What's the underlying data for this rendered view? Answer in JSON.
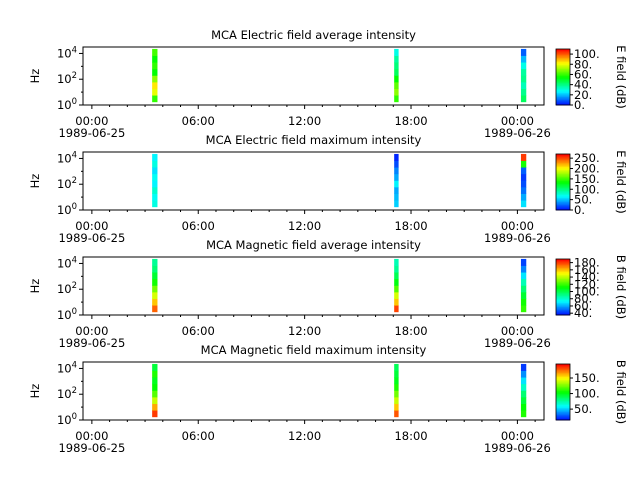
{
  "chart_data": [
    {
      "type": "heatmap",
      "title": "MCA  Electric field average intensity",
      "ylabel": "Hz",
      "colorbar_label": "E field (dB)",
      "colorbar_ticks": [
        "0.",
        "20.",
        "40.",
        "60.",
        "80.",
        "100."
      ],
      "colorbar_range": [
        0,
        110
      ],
      "y_scale": "log",
      "y_tick_labels": [
        "10^0",
        "10^2",
        "10^4"
      ],
      "ylim_log10": [
        0,
        4.5
      ],
      "x_tick_labels": [
        "00:00",
        "06:00",
        "12:00",
        "18:00",
        "00:00"
      ],
      "x_start_date": "1989-06-25",
      "x_end_date": "1989-06-26",
      "xlim_hours": [
        -0.5,
        25.5
      ],
      "bursts": [
        {
          "t_start": 3.4,
          "t_end": 3.7,
          "f_log10": [
            0.25,
            4.35
          ],
          "values_low_to_high": [
            60,
            80,
            85,
            70,
            55,
            60,
            55,
            62
          ]
        },
        {
          "t_start": 17.05,
          "t_end": 17.3,
          "f_log10": [
            0.25,
            4.35
          ],
          "values_low_to_high": [
            60,
            70,
            65,
            55,
            45,
            42,
            38,
            30
          ]
        },
        {
          "t_start": 24.2,
          "t_end": 24.5,
          "f_log10": [
            0.25,
            4.35
          ],
          "values_low_to_high": [
            45,
            40,
            35,
            40,
            38,
            30,
            20,
            10
          ]
        }
      ]
    },
    {
      "type": "heatmap",
      "title": "MCA  Electric field maximum intensity",
      "ylabel": "Hz",
      "colorbar_label": "E field (dB)",
      "colorbar_ticks": [
        "0.",
        "50.",
        "100.",
        "150.",
        "200.",
        "250."
      ],
      "colorbar_range": [
        0,
        270
      ],
      "y_scale": "log",
      "y_tick_labels": [
        "10^0",
        "10^2",
        "10^4"
      ],
      "ylim_log10": [
        0,
        4.5
      ],
      "x_tick_labels": [
        "00:00",
        "06:00",
        "12:00",
        "18:00",
        "00:00"
      ],
      "x_start_date": "1989-06-25",
      "x_end_date": "1989-06-26",
      "xlim_hours": [
        -0.5,
        25.5
      ],
      "bursts": [
        {
          "t_start": 3.4,
          "t_end": 3.7,
          "f_log10": [
            0.25,
            4.35
          ],
          "values_low_to_high": [
            75,
            70,
            80,
            65,
            70,
            60,
            75,
            65
          ]
        },
        {
          "t_start": 17.05,
          "t_end": 17.3,
          "f_log10": [
            0.25,
            4.35
          ],
          "values_low_to_high": [
            55,
            50,
            45,
            65,
            45,
            35,
            20,
            10
          ]
        },
        {
          "t_start": 24.2,
          "t_end": 24.5,
          "f_log10": [
            0.25,
            4.35
          ],
          "values_low_to_high": [
            60,
            45,
            30,
            20,
            15,
            25,
            140,
            255
          ]
        }
      ]
    },
    {
      "type": "heatmap",
      "title": "MCA  Magnetic field average intensity",
      "ylabel": "Hz",
      "colorbar_label": "B field (dB)",
      "colorbar_ticks": [
        "40.",
        "60.",
        "80.",
        "100.",
        "120.",
        "140.",
        "160.",
        "180."
      ],
      "colorbar_range": [
        35,
        190
      ],
      "y_scale": "log",
      "y_tick_labels": [
        "10^0",
        "10^2",
        "10^4"
      ],
      "ylim_log10": [
        0,
        4.5
      ],
      "x_tick_labels": [
        "00:00",
        "06:00",
        "12:00",
        "18:00",
        "00:00"
      ],
      "x_start_date": "1989-06-25",
      "x_end_date": "1989-06-26",
      "xlim_hours": [
        -0.5,
        25.5
      ],
      "bursts": [
        {
          "t_start": 3.4,
          "t_end": 3.7,
          "f_log10": [
            0.25,
            4.35
          ],
          "values_low_to_high": [
            175,
            160,
            145,
            130,
            115,
            105,
            95,
            90
          ]
        },
        {
          "t_start": 17.05,
          "t_end": 17.3,
          "f_log10": [
            0.25,
            4.35
          ],
          "values_low_to_high": [
            180,
            160,
            145,
            125,
            110,
            100,
            90,
            85
          ]
        },
        {
          "t_start": 24.2,
          "t_end": 24.5,
          "f_log10": [
            0.25,
            4.35
          ],
          "values_low_to_high": [
            120,
            115,
            105,
            95,
            85,
            70,
            55,
            45
          ]
        }
      ]
    },
    {
      "type": "heatmap",
      "title": "MCA  Magnetic field maximum intensity",
      "ylabel": "Hz",
      "colorbar_label": "B field (dB)",
      "colorbar_ticks": [
        "50.",
        "100.",
        "150."
      ],
      "colorbar_range": [
        15,
        195
      ],
      "y_scale": "log",
      "y_tick_labels": [
        "10^0",
        "10^2",
        "10^4"
      ],
      "ylim_log10": [
        0,
        4.5
      ],
      "x_tick_labels": [
        "00:00",
        "06:00",
        "12:00",
        "18:00",
        "00:00"
      ],
      "x_start_date": "1989-06-25",
      "x_end_date": "1989-06-26",
      "xlim_hours": [
        -0.5,
        25.5
      ],
      "bursts": [
        {
          "t_start": 3.4,
          "t_end": 3.7,
          "f_log10": [
            0.25,
            4.35
          ],
          "values_low_to_high": [
            185,
            165,
            140,
            120,
            105,
            100,
            110,
            95
          ]
        },
        {
          "t_start": 17.05,
          "t_end": 17.3,
          "f_log10": [
            0.25,
            4.35
          ],
          "values_low_to_high": [
            180,
            160,
            140,
            125,
            110,
            100,
            95,
            90
          ]
        },
        {
          "t_start": 24.2,
          "t_end": 24.5,
          "f_log10": [
            0.25,
            4.35
          ],
          "values_low_to_high": [
            110,
            105,
            95,
            85,
            70,
            55,
            40,
            25
          ]
        }
      ]
    }
  ]
}
